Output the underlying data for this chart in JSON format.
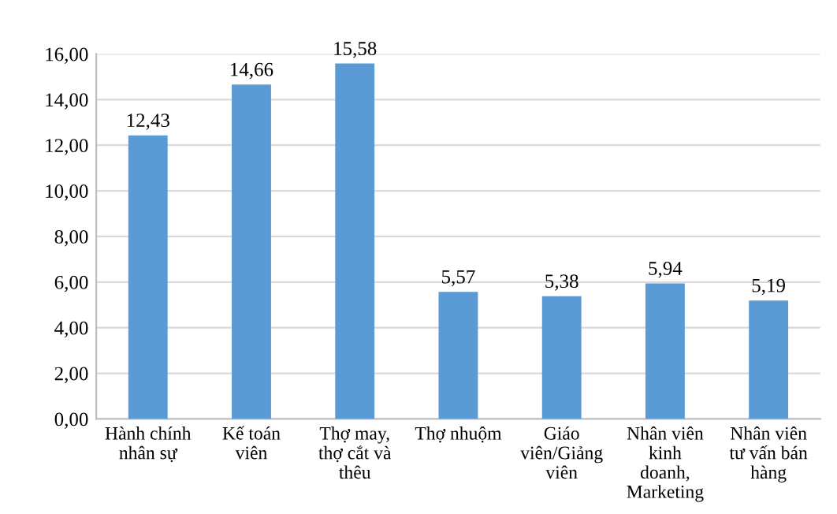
{
  "chart_data": {
    "type": "bar",
    "categories": [
      "Hành chính nhân sự",
      "Kế toán viên",
      "Thợ may, thợ cắt và thêu",
      "Thợ nhuộm",
      "Giáo viên/Giảng viên",
      "Nhân viên kinh doanh, Marketing",
      "Nhân viên tư vấn bán hàng"
    ],
    "values": [
      12.43,
      14.66,
      15.58,
      5.57,
      5.38,
      5.94,
      5.19
    ],
    "value_labels": [
      "12,43",
      "14,66",
      "15,58",
      "5,57",
      "5,38",
      "5,94",
      "5,19"
    ],
    "color": "#5b9bd5",
    "ylim": [
      0,
      16
    ],
    "yticks": [
      {
        "value": 0,
        "label": "0,00"
      },
      {
        "value": 2,
        "label": "2,00"
      },
      {
        "value": 4,
        "label": "4,00"
      },
      {
        "value": 6,
        "label": "6,00"
      },
      {
        "value": 8,
        "label": "8,00"
      },
      {
        "value": 10,
        "label": "10,00"
      },
      {
        "value": 12,
        "label": "12,00"
      },
      {
        "value": 14,
        "label": "14,00"
      },
      {
        "value": 16,
        "label": "16,00"
      }
    ],
    "grid": "y"
  }
}
